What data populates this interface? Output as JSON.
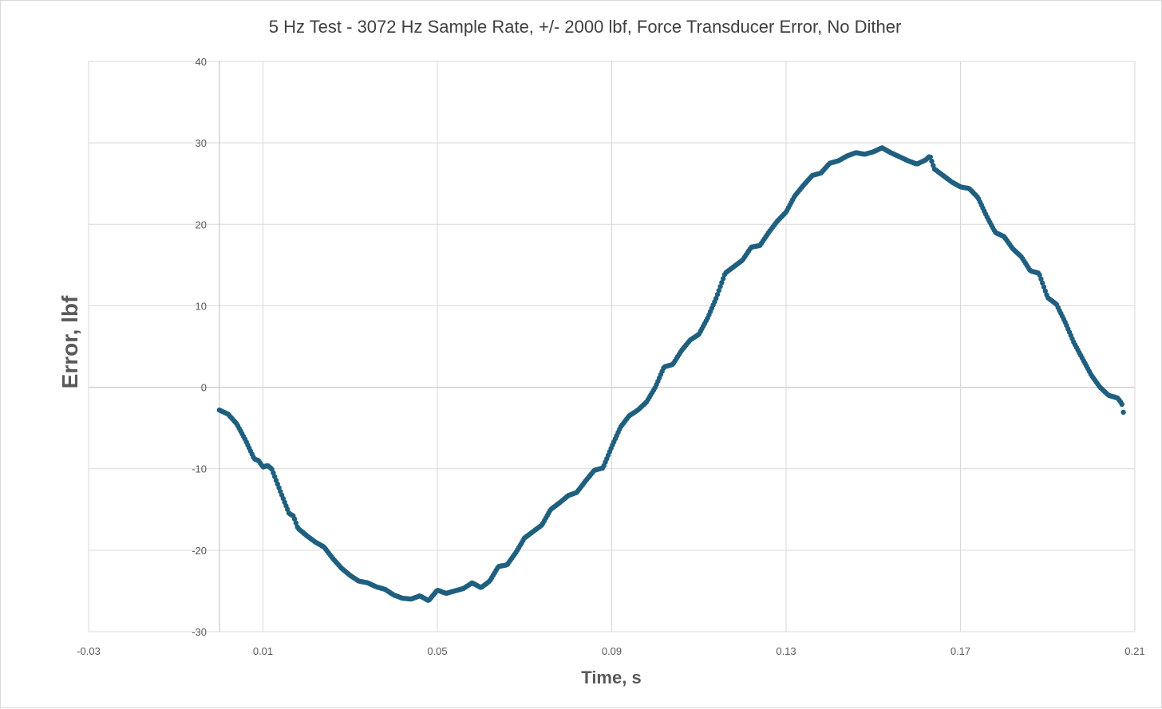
{
  "chart_data": {
    "type": "scatter",
    "title": "5 Hz Test - 3072 Hz Sample Rate, +/- 2000 lbf, Force Transducer Error, No Dither",
    "xlabel": "Time, s",
    "ylabel": "Error, lbf",
    "xlim": [
      -0.03,
      0.21
    ],
    "ylim": [
      -30,
      40
    ],
    "x_ticks": [
      -0.03,
      0.01,
      0.05,
      0.09,
      0.13,
      0.17,
      0.21
    ],
    "x_tick_labels": [
      "-0.03",
      "0.01",
      "0.05",
      "0.09",
      "0.13",
      "0.17",
      "0.21"
    ],
    "y_ticks": [
      -30,
      -20,
      -10,
      0,
      10,
      20,
      30,
      40
    ],
    "y_tick_labels": [
      "-30",
      "-20",
      "-10",
      "0",
      "10",
      "20",
      "30",
      "40"
    ],
    "grid": true,
    "marker_color": "#1f5f7f",
    "series": [
      {
        "name": "Force Transducer Error",
        "sample_rate_hz": 3072,
        "x_start": 0.0,
        "x_end": 0.2,
        "points": [
          [
            0.0,
            -2.8
          ],
          [
            0.002,
            -3.3
          ],
          [
            0.004,
            -4.5
          ],
          [
            0.006,
            -6.5
          ],
          [
            0.008,
            -8.8
          ],
          [
            0.009,
            -9.0
          ],
          [
            0.01,
            -9.8
          ],
          [
            0.011,
            -9.6
          ],
          [
            0.012,
            -10.0
          ],
          [
            0.014,
            -12.8
          ],
          [
            0.016,
            -15.5
          ],
          [
            0.017,
            -15.8
          ],
          [
            0.018,
            -17.3
          ],
          [
            0.02,
            -18.2
          ],
          [
            0.022,
            -19.0
          ],
          [
            0.024,
            -19.6
          ],
          [
            0.026,
            -21.0
          ],
          [
            0.028,
            -22.2
          ],
          [
            0.03,
            -23.1
          ],
          [
            0.032,
            -23.8
          ],
          [
            0.034,
            -24.0
          ],
          [
            0.036,
            -24.5
          ],
          [
            0.038,
            -24.8
          ],
          [
            0.04,
            -25.5
          ],
          [
            0.042,
            -25.9
          ],
          [
            0.044,
            -26.0
          ],
          [
            0.046,
            -25.6
          ],
          [
            0.048,
            -26.2
          ],
          [
            0.05,
            -24.9
          ],
          [
            0.052,
            -25.3
          ],
          [
            0.054,
            -25.0
          ],
          [
            0.056,
            -24.7
          ],
          [
            0.058,
            -24.0
          ],
          [
            0.06,
            -24.6
          ],
          [
            0.062,
            -23.8
          ],
          [
            0.064,
            -22.0
          ],
          [
            0.066,
            -21.8
          ],
          [
            0.068,
            -20.3
          ],
          [
            0.07,
            -18.5
          ],
          [
            0.072,
            -17.7
          ],
          [
            0.074,
            -16.9
          ],
          [
            0.076,
            -15.0
          ],
          [
            0.078,
            -14.2
          ],
          [
            0.08,
            -13.3
          ],
          [
            0.082,
            -12.9
          ],
          [
            0.084,
            -11.5
          ],
          [
            0.086,
            -10.2
          ],
          [
            0.088,
            -9.9
          ],
          [
            0.09,
            -7.3
          ],
          [
            0.092,
            -4.9
          ],
          [
            0.094,
            -3.5
          ],
          [
            0.096,
            -2.8
          ],
          [
            0.098,
            -1.8
          ],
          [
            0.1,
            0.0
          ],
          [
            0.102,
            2.5
          ],
          [
            0.104,
            2.8
          ],
          [
            0.106,
            4.5
          ],
          [
            0.108,
            5.8
          ],
          [
            0.11,
            6.5
          ],
          [
            0.112,
            8.5
          ],
          [
            0.114,
            11.0
          ],
          [
            0.116,
            14.0
          ],
          [
            0.118,
            14.8
          ],
          [
            0.12,
            15.6
          ],
          [
            0.122,
            17.2
          ],
          [
            0.124,
            17.4
          ],
          [
            0.126,
            19.0
          ],
          [
            0.128,
            20.4
          ],
          [
            0.13,
            21.5
          ],
          [
            0.132,
            23.5
          ],
          [
            0.134,
            24.8
          ],
          [
            0.136,
            26.0
          ],
          [
            0.138,
            26.3
          ],
          [
            0.14,
            27.5
          ],
          [
            0.142,
            27.8
          ],
          [
            0.144,
            28.4
          ],
          [
            0.146,
            28.8
          ],
          [
            0.148,
            28.6
          ],
          [
            0.15,
            28.9
          ],
          [
            0.152,
            29.4
          ],
          [
            0.154,
            28.8
          ],
          [
            0.156,
            28.3
          ],
          [
            0.158,
            27.8
          ],
          [
            0.16,
            27.4
          ],
          [
            0.162,
            27.9
          ],
          [
            0.163,
            28.4
          ],
          [
            0.164,
            26.8
          ],
          [
            0.166,
            26.0
          ],
          [
            0.168,
            25.2
          ],
          [
            0.17,
            24.6
          ],
          [
            0.172,
            24.4
          ],
          [
            0.174,
            23.3
          ],
          [
            0.176,
            21.0
          ],
          [
            0.178,
            19.0
          ],
          [
            0.18,
            18.5
          ],
          [
            0.182,
            17.0
          ],
          [
            0.184,
            16.0
          ],
          [
            0.186,
            14.3
          ],
          [
            0.188,
            14.0
          ],
          [
            0.19,
            11.0
          ],
          [
            0.192,
            10.2
          ],
          [
            0.194,
            8.0
          ],
          [
            0.196,
            5.5
          ],
          [
            0.198,
            3.5
          ],
          [
            0.2,
            1.5
          ],
          [
            0.202,
            0.0
          ],
          [
            0.204,
            -1.0
          ],
          [
            0.206,
            -1.3
          ],
          [
            0.207,
            -2.0
          ],
          [
            0.2075,
            -3.5
          ]
        ]
      }
    ]
  }
}
